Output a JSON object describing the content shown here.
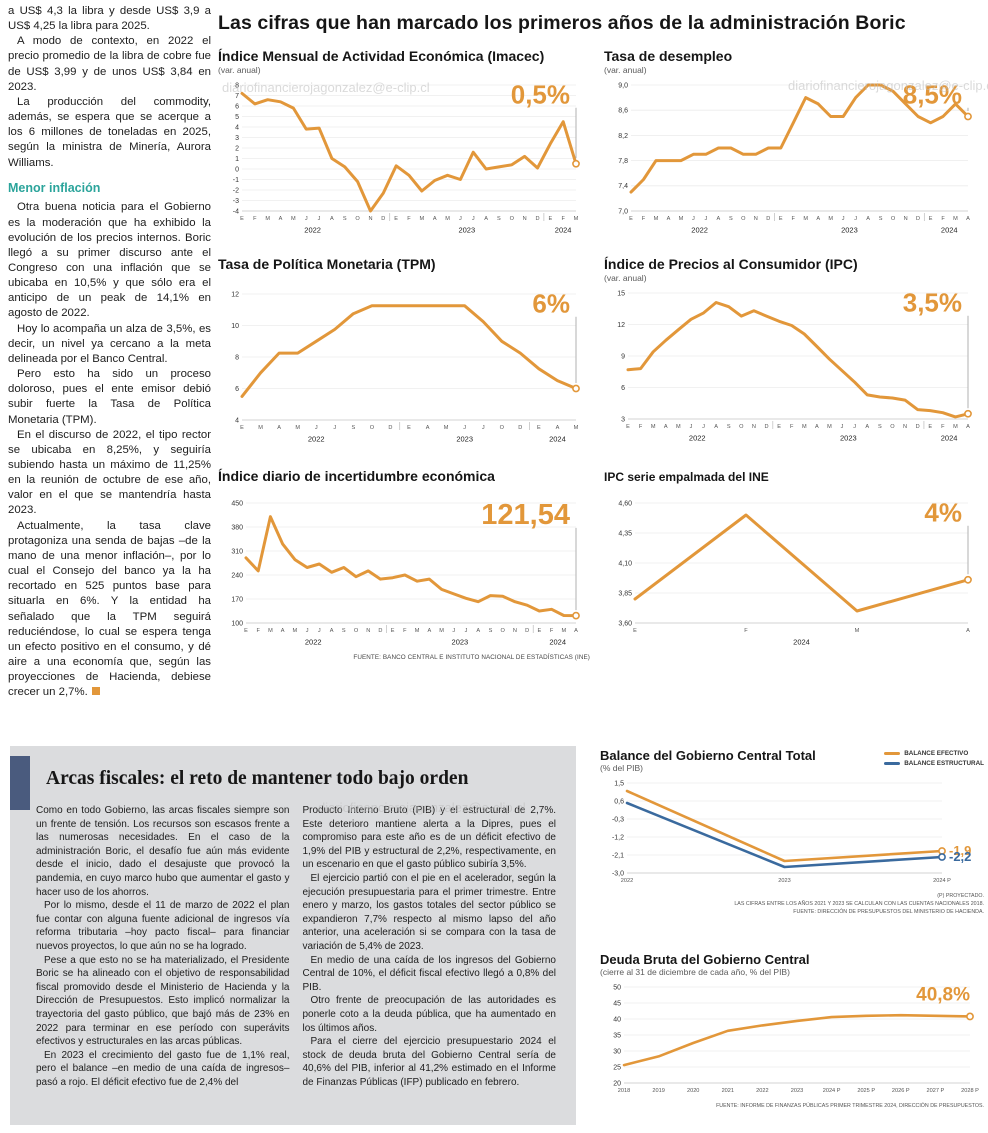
{
  "watermark": "diariofinancierojagonzalez@e-clip.cl",
  "colors": {
    "orange": "#E2973A",
    "blue": "#3A6A9E",
    "teal": "#2BA49B"
  },
  "main_title": "Las cifras que han marcado los primeros años de la administración Boric",
  "article": {
    "top_paragraphs": [
      "a US$ 4,3 la libra y desde US$ 3,9 a US$ 4,25 la libra para 2025.",
      "A modo de contexto, en 2022 el precio promedio de la libra de cobre fue de US$ 3,99 y de unos US$ 3,84 en 2023.",
      "La producción del commodity, además, se espera que se acerque a los 6 millones de toneladas en 2025, según la ministra de Minería, Aurora Williams."
    ],
    "subheading": "Menor inflación",
    "paragraphs": [
      "Otra buena noticia para el Gobierno es la moderación que ha exhibido la evolución de los precios internos. Boric llegó a su primer discurso ante el Congreso con una inflación que se ubicaba en 10,5% y que sólo era el anticipo de un peak de 14,1% en agosto de 2022.",
      "Hoy lo acompaña un alza de 3,5%, es decir, un nivel ya cercano a la meta delineada por el Banco Central.",
      "Pero esto ha sido un proceso doloroso, pues el ente emisor debió subir fuerte la Tasa de Política Monetaria (TPM).",
      "En el discurso de 2022, el tipo rector se ubicaba en 8,25%, y seguiría subiendo hasta un máximo de 11,25% en la reunión de octubre de ese año, valor en el que se mantendría hasta 2023.",
      "Actualmente, la tasa clave protagoniza una senda de bajas –de la mano de una menor inflación–, por lo cual el Consejo del banco ya la ha recortado en 525 puntos base para situarla en 6%. Y la entidad ha señalado que la TPM seguirá reduciéndose, lo cual se espera tenga un efecto positivo en el consumo, y dé aire a una economía que, según las proyecciones de Hacienda, debiese crecer un 2,7%."
    ]
  },
  "fiscal": {
    "title": "Arcas fiscales: el reto de mantener todo bajo orden",
    "col1": [
      "Como en todo Gobierno, las arcas fiscales siempre son un frente de tensión. Los recursos son escasos frente a las numerosas necesidades. En el caso de la administración Boric, el desafío fue aún más evidente desde el inicio, dado el desajuste que provocó la pandemia, en cuyo marco hubo que aumentar el gasto y hacer uso de los ahorros.",
      "Por lo mismo, desde el 11 de marzo de 2022 el plan fue contar con alguna fuente adicional de ingresos vía reforma tributaria –hoy pacto fiscal– para financiar nuevos proyectos, lo que aún no se ha logrado.",
      "Pese a que esto no se ha materializado, el Presidente Boric se ha alineado con el objetivo de responsabilidad fiscal promovido desde el Ministerio de Hacienda y la Dirección de Presupuestos. Esto implicó normalizar la trayectoria del gasto público, que bajó más de 23% en 2022 para terminar en ese período con superávits efectivos y estructurales en las arcas públicas.",
      "En 2023 el crecimiento del gasto fue de 1,1% real, pero el balance –en medio de una caída de ingresos– pasó a rojo. El déficit efectivo fue de 2,4% del"
    ],
    "col2": [
      "Producto Interno Bruto (PIB) y el estructural de 2,7%. Este deterioro mantiene alerta a la Dipres, pues el compromiso para este año es de un déficit efectivo de 1,9% del PIB y estructural de 2,2%, respectivamente, en un escenario en que el gasto público subiría 3,5%.",
      "El ejercicio partió con el pie en el acelerador, según la ejecución presupuestaria para el primer trimestre. Entre enero y marzo, los gastos totales del sector público se expandieron 7,7% respecto al mismo lapso del año anterior, una aceleración si se compara con la tasa de variación de 5,4% de 2023.",
      "En medio de una caída de los ingresos del Gobierno Central de 10%, el déficit fiscal efectivo llegó a 0,8% del PIB.",
      "Otro frente de preocupación de las autoridades es ponerle coto a la deuda pública, que ha aumentado en los últimos años.",
      "Para el cierre del ejercicio presupuestario 2024 el stock de deuda bruta del Gobierno Central sería de 40,6% del PIB, inferior al 41,2% estimado en el Informe de Finanzas Públicas (IFP) publicado en febrero."
    ]
  },
  "chart_data": [
    {
      "type": "line",
      "title": "Índice Mensual de Actividad Económica (Imacec)",
      "subtitle": "(var. anual)",
      "ylim": [
        -4,
        8
      ],
      "yticks": [
        [
          8,
          "8"
        ],
        [
          7,
          "7"
        ],
        [
          6,
          "6"
        ],
        [
          5,
          "5"
        ],
        [
          4,
          "4"
        ],
        [
          3,
          "3"
        ],
        [
          2,
          "2"
        ],
        [
          1,
          "1"
        ],
        [
          0,
          "0"
        ],
        [
          -1,
          "-1"
        ],
        [
          -2,
          "-2"
        ],
        [
          -3,
          "-3"
        ],
        [
          -4,
          "-4"
        ]
      ],
      "xlabels": [
        "E",
        "F",
        "M",
        "A",
        "M",
        "J",
        "J",
        "A",
        "S",
        "O",
        "N",
        "D",
        "E",
        "F",
        "M",
        "A",
        "M",
        "J",
        "J",
        "A",
        "S",
        "O",
        "N",
        "D",
        "E",
        "F",
        "M"
      ],
      "years": [
        {
          "label": "2022",
          "from": 0,
          "to": 11
        },
        {
          "label": "2023",
          "from": 12,
          "to": 23
        },
        {
          "label": "2024",
          "from": 24,
          "to": 26
        }
      ],
      "series": [
        {
          "color": "orange",
          "values": [
            7.2,
            6.2,
            6.6,
            6.4,
            5.8,
            3.8,
            3.9,
            1.0,
            0.2,
            -1.2,
            -4.0,
            -2.3,
            0.3,
            -0.6,
            -2.1,
            -1.1,
            -0.6,
            -1.0,
            1.6,
            0.0,
            0.2,
            0.4,
            1.2,
            0.1,
            2.4,
            4.5,
            0.5
          ]
        }
      ],
      "annotations": [
        {
          "text": "0,5%",
          "color": "orange",
          "mode": "top",
          "size": 26,
          "series": 0
        }
      ]
    },
    {
      "type": "line",
      "title": "Tasa de desempleo",
      "subtitle": "(var. anual)",
      "ylim": [
        7.0,
        9.0
      ],
      "yticks": [
        [
          9.0,
          "9,0"
        ],
        [
          8.6,
          "8,6"
        ],
        [
          8.2,
          "8,2"
        ],
        [
          7.8,
          "7,8"
        ],
        [
          7.4,
          "7,4"
        ],
        [
          7.0,
          "7,0"
        ]
      ],
      "xlabels": [
        "E",
        "F",
        "M",
        "A",
        "M",
        "J",
        "J",
        "A",
        "S",
        "O",
        "N",
        "D",
        "E",
        "F",
        "M",
        "A",
        "M",
        "J",
        "J",
        "A",
        "S",
        "O",
        "N",
        "D",
        "E",
        "F",
        "M",
        "A"
      ],
      "years": [
        {
          "label": "2022",
          "from": 0,
          "to": 11
        },
        {
          "label": "2023",
          "from": 12,
          "to": 23
        },
        {
          "label": "2024",
          "from": 24,
          "to": 27
        }
      ],
      "series": [
        {
          "color": "orange",
          "values": [
            7.3,
            7.5,
            7.8,
            7.8,
            7.8,
            7.9,
            7.9,
            8.0,
            8.0,
            7.9,
            7.9,
            8.0,
            8.0,
            8.4,
            8.8,
            8.7,
            8.5,
            8.5,
            8.8,
            9.0,
            9.0,
            8.9,
            8.7,
            8.5,
            8.4,
            8.5,
            8.7,
            8.5
          ]
        }
      ],
      "annotations": [
        {
          "text": "8,5%",
          "color": "orange",
          "mode": "top",
          "size": 26,
          "series": 0
        }
      ]
    },
    {
      "type": "line",
      "title": "Tasa de Política Monetaria (TPM)",
      "subtitle": "",
      "ylim": [
        4,
        12
      ],
      "yticks": [
        [
          12,
          "12"
        ],
        [
          10,
          "10"
        ],
        [
          8,
          "8"
        ],
        [
          6,
          "6"
        ],
        [
          4,
          "4"
        ]
      ],
      "xlabels": [
        "E",
        "M",
        "A",
        "M",
        "J",
        "J",
        "S",
        "O",
        "D",
        "E",
        "A",
        "M",
        "J",
        "J",
        "O",
        "D",
        "E",
        "A",
        "M"
      ],
      "years": [
        {
          "label": "2022",
          "from": 0,
          "to": 8
        },
        {
          "label": "2023",
          "from": 9,
          "to": 15
        },
        {
          "label": "2024",
          "from": 16,
          "to": 18
        }
      ],
      "series": [
        {
          "color": "orange",
          "values": [
            5.5,
            7.0,
            8.25,
            8.25,
            9.0,
            9.75,
            10.75,
            11.25,
            11.25,
            11.25,
            11.25,
            11.25,
            11.25,
            10.25,
            9.0,
            8.25,
            7.25,
            6.5,
            6.0
          ]
        }
      ],
      "annotations": [
        {
          "text": "6%",
          "color": "orange",
          "mode": "top",
          "size": 26,
          "series": 0
        }
      ]
    },
    {
      "type": "line",
      "title": "Índice de Precios al Consumidor (IPC)",
      "subtitle": "(var. anual)",
      "ylim": [
        3,
        15
      ],
      "yticks": [
        [
          15,
          "15"
        ],
        [
          12,
          "12"
        ],
        [
          9,
          "9"
        ],
        [
          6,
          "6"
        ],
        [
          3,
          "3"
        ]
      ],
      "xlabels": [
        "E",
        "F",
        "M",
        "A",
        "M",
        "J",
        "J",
        "A",
        "S",
        "O",
        "N",
        "D",
        "E",
        "F",
        "M",
        "A",
        "M",
        "J",
        "J",
        "A",
        "S",
        "O",
        "N",
        "D",
        "E",
        "F",
        "M",
        "A"
      ],
      "years": [
        {
          "label": "2022",
          "from": 0,
          "to": 11
        },
        {
          "label": "2023",
          "from": 12,
          "to": 23
        },
        {
          "label": "2024",
          "from": 24,
          "to": 27
        }
      ],
      "series": [
        {
          "color": "orange",
          "values": [
            7.7,
            7.8,
            9.4,
            10.5,
            11.5,
            12.5,
            13.1,
            14.1,
            13.7,
            12.8,
            13.3,
            12.8,
            12.3,
            11.9,
            11.1,
            9.9,
            8.7,
            7.6,
            6.5,
            5.3,
            5.1,
            5.0,
            4.8,
            3.9,
            3.8,
            3.6,
            3.2,
            3.5
          ]
        }
      ],
      "annotations": [
        {
          "text": "3,5%",
          "color": "orange",
          "mode": "top",
          "size": 26,
          "series": 0
        }
      ]
    },
    {
      "type": "line",
      "title": "Índice diario de incertidumbre económica",
      "subtitle": "",
      "ylim": [
        100,
        450
      ],
      "yticks": [
        [
          450,
          "450"
        ],
        [
          380,
          "380"
        ],
        [
          310,
          "310"
        ],
        [
          240,
          "240"
        ],
        [
          170,
          "170"
        ],
        [
          100,
          "100"
        ]
      ],
      "xlabels": [
        "E",
        "F",
        "M",
        "A",
        "M",
        "J",
        "J",
        "A",
        "S",
        "O",
        "N",
        "D",
        "E",
        "F",
        "M",
        "A",
        "M",
        "J",
        "J",
        "A",
        "S",
        "O",
        "N",
        "D",
        "E",
        "F",
        "M",
        "A"
      ],
      "years": [
        {
          "label": "2022",
          "from": 0,
          "to": 11
        },
        {
          "label": "2023",
          "from": 12,
          "to": 23
        },
        {
          "label": "2024",
          "from": 24,
          "to": 27
        }
      ],
      "series": [
        {
          "color": "orange",
          "values": [
            290,
            252,
            410,
            330,
            285,
            262,
            272,
            248,
            262,
            235,
            252,
            228,
            232,
            240,
            222,
            228,
            198,
            185,
            172,
            162,
            180,
            178,
            162,
            152,
            135,
            140,
            122,
            121.54
          ]
        }
      ],
      "annotations": [
        {
          "text": "121,54",
          "color": "orange",
          "mode": "top",
          "size": 29,
          "series": 0
        }
      ],
      "source": "FUENTE: BANCO CENTRAL E INSTITUTO NACIONAL DE ESTADÍSTICAS (INE)"
    },
    {
      "type": "line",
      "title": "IPC serie empalmada del INE",
      "subtitle": "",
      "ylim": [
        3.6,
        4.6
      ],
      "yticks": [
        [
          4.6,
          "4,60"
        ],
        [
          4.35,
          "4,35"
        ],
        [
          4.1,
          "4,10"
        ],
        [
          3.85,
          "3,85"
        ],
        [
          3.6,
          "3,60"
        ]
      ],
      "xlabels": [
        "E",
        "F",
        "M",
        "A"
      ],
      "years": [
        {
          "label": "2024",
          "from": 0,
          "to": 3
        }
      ],
      "series": [
        {
          "color": "orange",
          "values": [
            3.8,
            4.5,
            3.7,
            3.96
          ]
        }
      ],
      "annotations": [
        {
          "text": "4%",
          "color": "orange",
          "mode": "top",
          "size": 26,
          "series": 0
        }
      ]
    },
    {
      "type": "line",
      "title": "Balance del Gobierno Central Total",
      "subtitle": "(% del PIB)",
      "ylim": [
        -3.0,
        1.5
      ],
      "yticks": [
        [
          1.5,
          "1,5"
        ],
        [
          0.6,
          "0,6"
        ],
        [
          -0.3,
          "-0,3"
        ],
        [
          -1.2,
          "-1,2"
        ],
        [
          -2.1,
          "-2,1"
        ],
        [
          -3.0,
          "-3,0"
        ]
      ],
      "xlabels": [
        "2022",
        "2023",
        "2024 P"
      ],
      "series": [
        {
          "name": "BALANCE EFECTIVO",
          "color": "orange",
          "values": [
            1.1,
            -2.4,
            -1.9
          ]
        },
        {
          "name": "BALANCE ESTRUCTURAL",
          "color": "blue",
          "values": [
            0.5,
            -2.7,
            -2.2
          ]
        }
      ],
      "annotations": [
        {
          "text": "-1,9",
          "color": "orange",
          "mode": "right",
          "size": 13,
          "series": 0
        },
        {
          "text": "-2,2",
          "color": "blue",
          "mode": "right",
          "size": 13,
          "series": 1
        }
      ],
      "legend": [
        {
          "label": "BALANCE EFECTIVO",
          "color": "orange"
        },
        {
          "label": "BALANCE ESTRUCTURAL",
          "color": "blue"
        }
      ],
      "notes": [
        "(P) PROYECTADO.",
        "LAS CIFRAS ENTRE LOS AÑOS 2021 Y 2023 SE CALCULAN CON LAS CUENTAS NACIONALES 2018.",
        "FUENTE: DIRECCIÓN DE PRESUPUESTOS DEL MINISTERIO DE HACIENDA."
      ]
    },
    {
      "type": "line",
      "title": "Deuda Bruta del Gobierno Central",
      "subtitle": "(cierre al 31 de diciembre de cada año, % del PIB)",
      "ylim": [
        20,
        50
      ],
      "yticks": [
        [
          50,
          "50"
        ],
        [
          45,
          "45"
        ],
        [
          40,
          "40"
        ],
        [
          35,
          "35"
        ],
        [
          30,
          "30"
        ],
        [
          25,
          "25"
        ],
        [
          20,
          "20"
        ]
      ],
      "xlabels": [
        "2018",
        "2019",
        "2020",
        "2021",
        "2022",
        "2023",
        "2024 P",
        "2025 P",
        "2026 P",
        "2027 P",
        "2028 P"
      ],
      "series": [
        {
          "color": "orange",
          "values": [
            25.6,
            28.3,
            32.5,
            36.3,
            38.0,
            39.4,
            40.6,
            41.0,
            41.2,
            41.0,
            40.8
          ]
        }
      ],
      "annotations": [
        {
          "text": "40,8%",
          "color": "orange",
          "mode": "topend",
          "size": 19,
          "series": 0
        }
      ],
      "source": "FUENTE: INFORME DE FINANZAS PÚBLICAS PRIMER TRIMESTRE 2024, DIRECCIÓN DE PRESUPUESTOS."
    }
  ]
}
